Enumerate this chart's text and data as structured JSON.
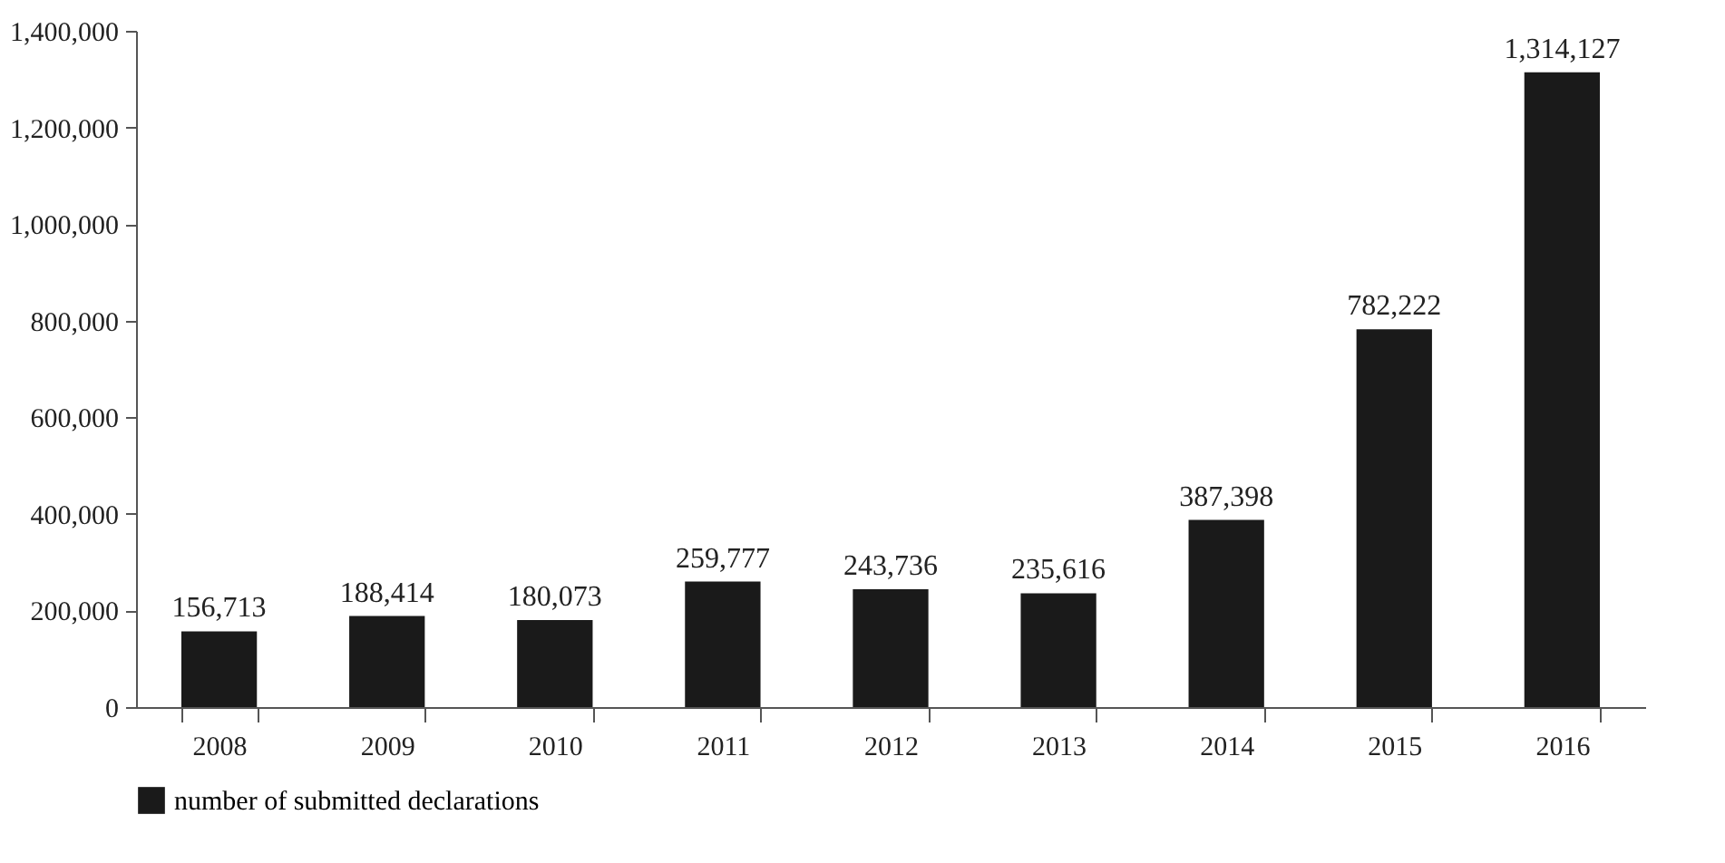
{
  "chart_data": {
    "type": "bar",
    "categories": [
      "2008",
      "2009",
      "2010",
      "2011",
      "2012",
      "2013",
      "2014",
      "2015",
      "2016"
    ],
    "series": [
      {
        "name": "number of submitted declarations",
        "color": "#1a1a1a",
        "values": [
          156713,
          188414,
          180073,
          259777,
          243736,
          235616,
          387398,
          782222,
          1314127
        ],
        "value_labels": [
          "156,713",
          "188,414",
          "180,073",
          "259,777",
          "243,736",
          "235,616",
          "387,398",
          "782,222",
          "1,314,127"
        ]
      }
    ],
    "ylim": [
      0,
      1400000
    ],
    "yticks": [
      0,
      {
        "value": 200000,
        "label": "200,000"
      },
      {
        "value": 400000,
        "label": "400,000"
      },
      {
        "value": 600000,
        "label": "600,000"
      },
      {
        "value": 800000,
        "label": "800,000"
      },
      {
        "value": 1000000,
        "label": "1,000,000"
      },
      {
        "value": 1200000,
        "label": "1,200,000"
      },
      {
        "value": 1400000,
        "label": "1,400,000"
      }
    ],
    "grid": false,
    "legend": "bottom"
  }
}
